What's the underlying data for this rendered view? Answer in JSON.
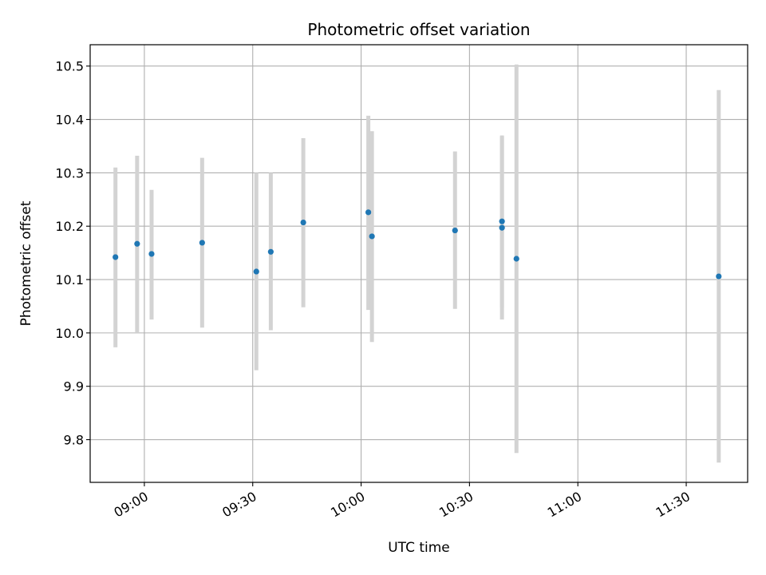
{
  "chart_data": {
    "type": "scatter",
    "title": "Photometric offset variation",
    "xlabel": "UTC time",
    "ylabel": "Photometric offset",
    "x_axis_type": "time",
    "xlim": [
      "08:45",
      "11:47"
    ],
    "ylim": [
      9.72,
      10.54
    ],
    "x_ticks": [
      "09:00",
      "09:30",
      "10:00",
      "10:30",
      "11:00",
      "11:30"
    ],
    "y_ticks": [
      9.8,
      9.9,
      10.0,
      10.1,
      10.2,
      10.3,
      10.4,
      10.5
    ],
    "grid": true,
    "errorbar_color": "#d3d3d3",
    "marker_color": "#1f77b4",
    "points": [
      {
        "x": "08:52",
        "y": 10.142,
        "ymin": 9.973,
        "ymax": 10.31
      },
      {
        "x": "08:58",
        "y": 10.167,
        "ymin": 10.0,
        "ymax": 10.332
      },
      {
        "x": "09:02",
        "y": 10.148,
        "ymin": 10.025,
        "ymax": 10.268
      },
      {
        "x": "09:16",
        "y": 10.169,
        "ymin": 10.01,
        "ymax": 10.328
      },
      {
        "x": "09:31",
        "y": 10.115,
        "ymin": 9.93,
        "ymax": 10.3
      },
      {
        "x": "09:35",
        "y": 10.152,
        "ymin": 10.005,
        "ymax": 10.3
      },
      {
        "x": "09:44",
        "y": 10.207,
        "ymin": 10.048,
        "ymax": 10.365
      },
      {
        "x": "10:02",
        "y": 10.226,
        "ymin": 10.043,
        "ymax": 10.407
      },
      {
        "x": "10:03",
        "y": 10.181,
        "ymin": 9.983,
        "ymax": 10.378
      },
      {
        "x": "10:26",
        "y": 10.192,
        "ymin": 10.045,
        "ymax": 10.34
      },
      {
        "x": "10:39",
        "y": 10.209,
        "ymin": 10.048,
        "ymax": 10.37
      },
      {
        "x": "10:39",
        "y": 10.197,
        "ymin": 10.025,
        "ymax": 10.368
      },
      {
        "x": "10:43",
        "y": 10.139,
        "ymin": 9.775,
        "ymax": 10.503
      },
      {
        "x": "11:39",
        "y": 10.106,
        "ymin": 9.757,
        "ymax": 10.455
      }
    ]
  }
}
